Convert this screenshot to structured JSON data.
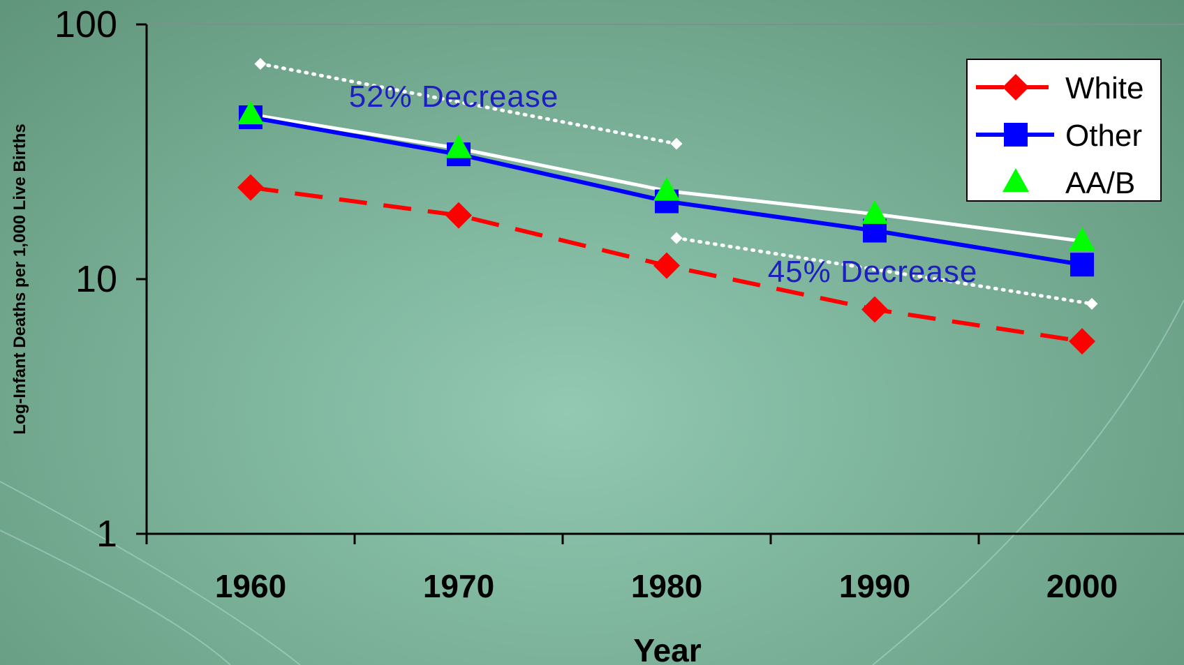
{
  "chart_data": {
    "type": "line",
    "title": "",
    "xlabel": "Year",
    "ylabel": "Log-Infant Deaths per 1,000 Live Births",
    "yscale": "log",
    "ylim": [
      1,
      100
    ],
    "y_ticks": [
      "1",
      "10",
      "100"
    ],
    "categories": [
      "1960",
      "1970",
      "1980",
      "1990",
      "2000"
    ],
    "series": [
      {
        "name": "White",
        "color": "#ff0000",
        "marker": "diamond",
        "line": "dashed",
        "values": [
          22.9,
          17.8,
          11.3,
          7.6,
          5.7
        ]
      },
      {
        "name": "Other",
        "color": "#0000ff",
        "marker": "square",
        "line": "solid",
        "values": [
          43.2,
          30.9,
          20.2,
          15.5,
          11.4
        ]
      },
      {
        "name": "AA/B",
        "color": "#00ff00",
        "marker": "triangle",
        "line": "solid-white",
        "values": [
          44.3,
          32.6,
          22.2,
          18.0,
          14.1
        ]
      }
    ],
    "annotations": [
      {
        "text": "52% Decrease",
        "from": {
          "x": "1960",
          "y": 70
        },
        "to": {
          "x": "1980",
          "y": 34
        }
      },
      {
        "text": "45% Decrease",
        "from": {
          "x": "1980",
          "y": 14.5
        },
        "to": {
          "x": "2000",
          "y": 8
        }
      }
    ],
    "legend": {
      "position": "top-right",
      "items": [
        "White",
        "Other",
        "AA/B"
      ]
    },
    "grid": false
  }
}
